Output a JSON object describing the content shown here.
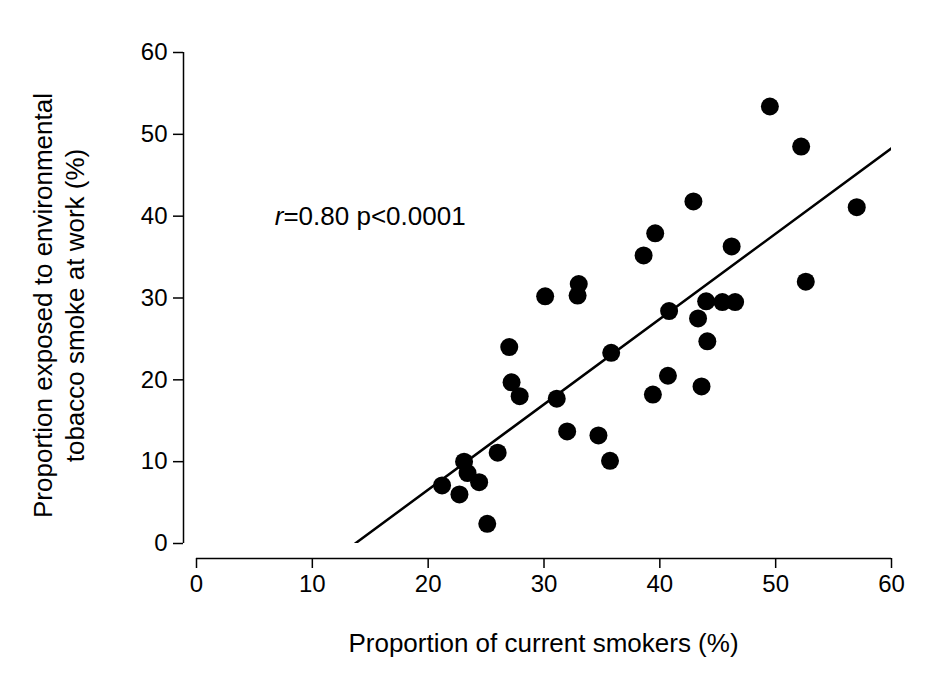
{
  "chart_data": {
    "type": "scatter",
    "x_label": "Proportion of current smokers (%)",
    "y_label": "Proportion exposed to environmental\ntobacco smoke at work (%)",
    "x": [
      21.2,
      22.7,
      23.1,
      23.4,
      24.4,
      25.1,
      26.0,
      27.0,
      27.2,
      27.9,
      30.1,
      31.1,
      32.0,
      33.0,
      32.9,
      34.7,
      35.7,
      35.8,
      38.6,
      39.6,
      39.4,
      40.7,
      40.8,
      42.9,
      43.3,
      43.6,
      44.0,
      44.1,
      45.4,
      46.2,
      46.5,
      49.5,
      52.2,
      52.6,
      57.0
    ],
    "values": [
      7.1,
      6.0,
      10.0,
      8.6,
      7.5,
      2.4,
      11.1,
      24.0,
      19.7,
      18.0,
      30.2,
      17.7,
      13.7,
      31.7,
      30.3,
      13.2,
      10.1,
      23.3,
      35.2,
      37.9,
      18.2,
      20.5,
      28.4,
      41.8,
      27.5,
      19.2,
      29.6,
      24.7,
      29.5,
      36.3,
      29.5,
      53.4,
      48.5,
      32.0,
      41.1
    ],
    "trend_line": {
      "x": [
        13.7,
        60
      ],
      "values": [
        0,
        48.3
      ]
    },
    "annotations": [
      {
        "text": "r=0.80 p<0.0001",
        "x": 6.8,
        "y": 39.7
      }
    ],
    "xlim": [
      0,
      60
    ],
    "ylim": [
      0,
      60
    ],
    "xticks": [
      0,
      10,
      20,
      30,
      40,
      50,
      60
    ],
    "yticks": [
      0,
      10,
      20,
      30,
      40,
      50,
      60
    ],
    "color": "#000000",
    "marker": "circle",
    "line_style": "solid",
    "grid": false
  }
}
